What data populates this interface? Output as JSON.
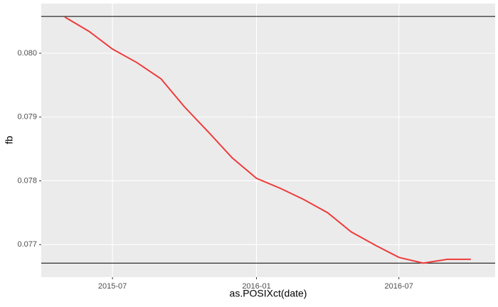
{
  "chart_data": {
    "type": "line",
    "x_label": "as.POSIXct(date)",
    "y_label": "fb",
    "x": [
      "2015-05",
      "2015-06",
      "2015-07",
      "2015-08",
      "2015-09",
      "2015-10",
      "2015-11",
      "2015-12",
      "2016-01",
      "2016-02",
      "2016-03",
      "2016-04",
      "2016-05",
      "2016-06",
      "2016-07",
      "2016-08",
      "2016-09",
      "2016-10"
    ],
    "values": [
      0.08057,
      0.080344,
      0.080067,
      0.079856,
      0.0796,
      0.07916,
      0.07876,
      0.07836,
      0.07804,
      0.07788,
      0.07771,
      0.0775,
      0.0772,
      0.07699,
      0.0768,
      0.07671,
      0.07677,
      0.07677
    ],
    "color": "#ee3b3b",
    "hlines": [
      0.080578,
      0.07671
    ],
    "xlim": [
      "2015-04",
      "2016-11"
    ],
    "xticks": [
      "2015-07",
      "2016-01",
      "2016-07"
    ],
    "ylim": [
      0.07649,
      0.08078
    ],
    "yticks": [
      0.077,
      0.078,
      0.079,
      {
        "value": 0.08,
        "label": "0.080"
      }
    ],
    "grid": true
  }
}
